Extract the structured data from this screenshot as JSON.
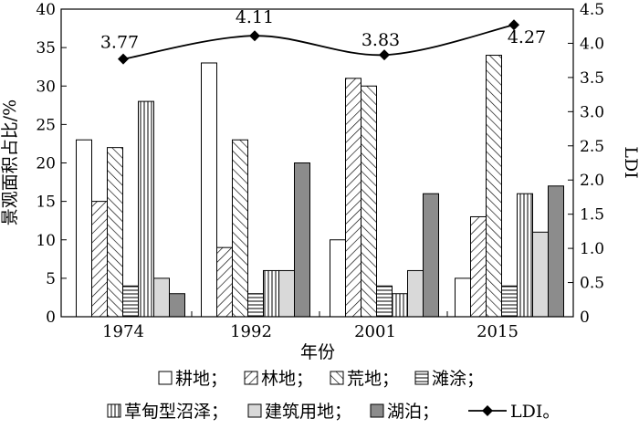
{
  "chart_data": {
    "type": "bar",
    "xlabel": "年份",
    "ylabel": "景观面积占比/%",
    "ylabel_right": "LDI",
    "ylim": [
      0,
      40
    ],
    "ylim_right": [
      0,
      4.5
    ],
    "yticks": [
      "0",
      "5",
      "10",
      "15",
      "20",
      "25",
      "30",
      "35",
      "40"
    ],
    "yticks_right": [
      "0",
      "0.5",
      "1.0",
      "1.5",
      "2.0",
      "2.5",
      "3.0",
      "3.5",
      "4.0",
      "4.5"
    ],
    "categories": [
      "1974",
      "1992",
      "2001",
      "2015"
    ],
    "series": [
      {
        "name": "耕地",
        "legend_label": "耕地；",
        "pattern": "blank",
        "values": [
          23,
          33,
          10,
          5
        ]
      },
      {
        "name": "林地",
        "legend_label": "林地；",
        "pattern": "diag-up",
        "values": [
          15,
          9,
          31,
          13
        ]
      },
      {
        "name": "荒地",
        "legend_label": "荒地；",
        "pattern": "diag-down",
        "values": [
          22,
          23,
          30,
          34
        ]
      },
      {
        "name": "滩涂",
        "legend_label": "滩涂；",
        "pattern": "hlines",
        "values": [
          4,
          3,
          4,
          4
        ]
      },
      {
        "name": "草甸型沼泽",
        "legend_label": "草甸型沼泽；",
        "pattern": "vlines",
        "values": [
          28,
          6,
          3,
          16
        ]
      },
      {
        "name": "建筑用地",
        "legend_label": "建筑用地；",
        "pattern": "light-gray",
        "values": [
          5,
          6,
          6,
          11
        ]
      },
      {
        "name": "湖泊",
        "legend_label": "湖泊；",
        "pattern": "dark-gray",
        "values": [
          3,
          20,
          16,
          17
        ]
      }
    ],
    "line_series": {
      "name": "LDI",
      "legend_label": "LDI。",
      "axis": "right",
      "values": [
        3.77,
        4.11,
        3.83,
        4.27
      ],
      "labels": [
        "3.77",
        "4.11",
        "3.83",
        "4.27"
      ]
    },
    "grid": false,
    "legend_position": "bottom",
    "colors": {
      "light_gray": "#d9d9d9",
      "dark_gray": "#8c8c8c",
      "stroke": "#000000"
    }
  }
}
